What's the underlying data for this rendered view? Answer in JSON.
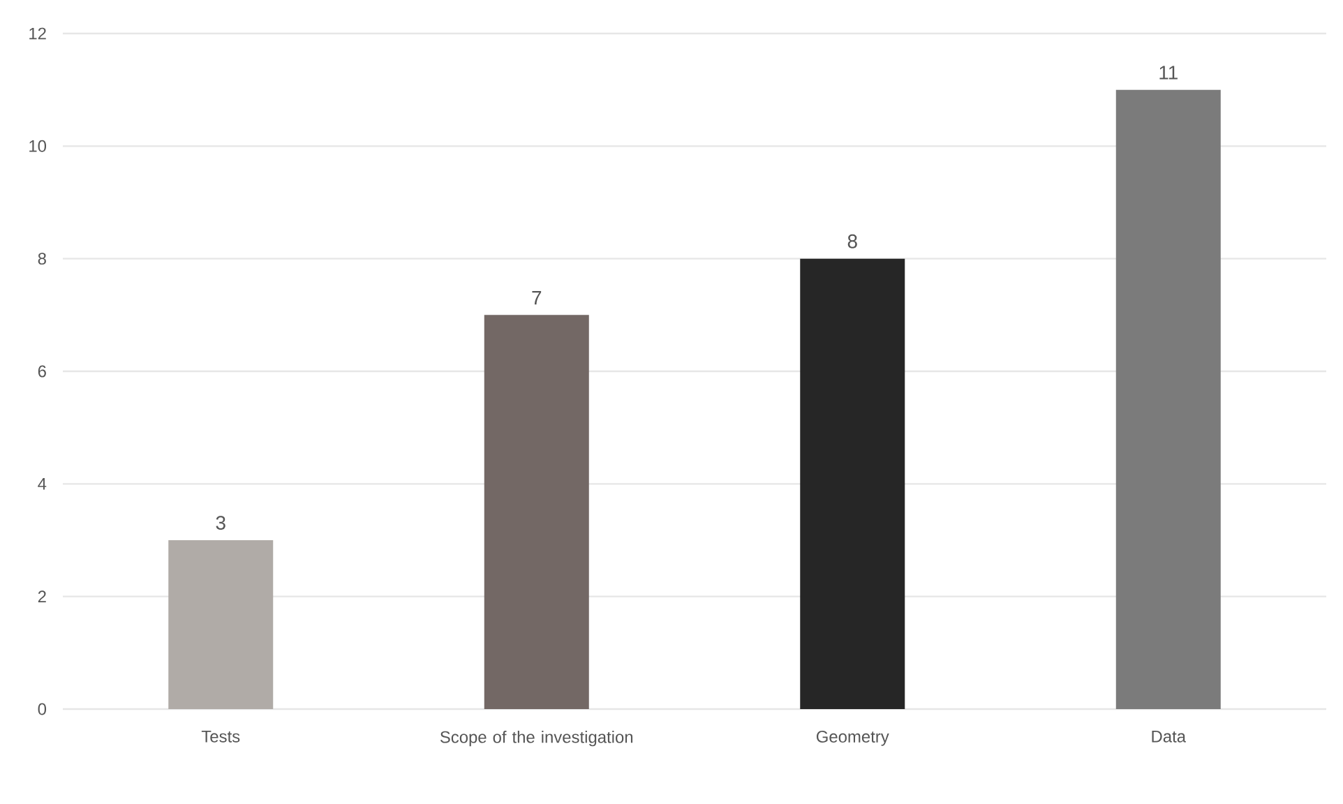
{
  "chart_data": {
    "type": "bar",
    "categories": [
      "Tests",
      "Scope of the investigation",
      "Geometry",
      "Data"
    ],
    "values": [
      3,
      7,
      8,
      11
    ],
    "colors": [
      "#b0aba7",
      "#736865",
      "#262626",
      "#7b7b7b"
    ],
    "ylim": [
      0,
      12
    ],
    "yticks": [
      0,
      2,
      4,
      6,
      8,
      10,
      12
    ],
    "grid": "y",
    "data_labels": true
  }
}
